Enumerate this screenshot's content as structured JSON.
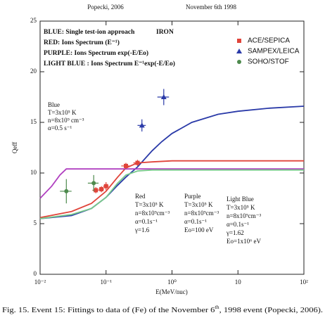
{
  "header": {
    "left": "Popecki, 2006",
    "right": "November 6th 1998"
  },
  "chart_data": {
    "type": "scatter",
    "xlabel": "E(MeV/nuc)",
    "ylabel": "Qeff",
    "xscale": "log",
    "xlim": [
      0.01,
      100
    ],
    "ylim": [
      0,
      25
    ],
    "xticks": [
      {
        "value": 0.01,
        "label": "10⁻²"
      },
      {
        "value": 0.1,
        "label": "10⁻¹"
      },
      {
        "value": 1,
        "label": "10⁰"
      },
      {
        "value": 10,
        "label": "10"
      },
      {
        "value": 100,
        "label": "10²"
      }
    ],
    "yticks": [
      0,
      5,
      10,
      15,
      20,
      25
    ],
    "legend": "upper right",
    "lines": [
      {
        "color": "#2a3aa8",
        "x": [
          0.01,
          0.03,
          0.06,
          0.1,
          0.15,
          0.2,
          0.3,
          0.5,
          0.7,
          1,
          2,
          5,
          10,
          30,
          100
        ],
        "values": [
          5.5,
          5.8,
          6.5,
          7.6,
          8.8,
          9.6,
          10.6,
          12.2,
          13.1,
          13.9,
          15.0,
          15.8,
          16.1,
          16.4,
          16.6
        ]
      },
      {
        "color": "#e0443a",
        "x": [
          0.01,
          0.03,
          0.06,
          0.1,
          0.15,
          0.2,
          0.3,
          0.5,
          1,
          10,
          100
        ],
        "values": [
          5.6,
          6.2,
          7.0,
          8.2,
          9.6,
          10.5,
          11.0,
          11.1,
          11.2,
          11.2,
          11.2
        ]
      },
      {
        "color": "#b040c0",
        "x": [
          0.01,
          0.015,
          0.02,
          0.025,
          0.03,
          1,
          100
        ],
        "values": [
          7.5,
          8.7,
          9.8,
          10.4,
          10.4,
          10.4,
          10.4
        ]
      },
      {
        "color": "#78c98a",
        "x": [
          0.01,
          0.03,
          0.06,
          0.1,
          0.15,
          0.2,
          0.3,
          0.5,
          1,
          10,
          100
        ],
        "values": [
          5.5,
          5.9,
          6.5,
          7.6,
          9.0,
          9.8,
          10.2,
          10.3,
          10.3,
          10.3,
          10.3
        ]
      }
    ],
    "series": [
      {
        "name": "ACE/SEPICA",
        "color": "#e0443a",
        "marker": "square",
        "x": [
          0.07,
          0.085,
          0.1,
          0.2,
          0.3
        ],
        "values": [
          8.3,
          8.4,
          8.7,
          10.7,
          11.0
        ],
        "xerr": [
          0.008,
          0.008,
          0.01,
          0.03,
          0.04
        ],
        "yerr": [
          0.3,
          0.3,
          0.4,
          0.3,
          0.3
        ]
      },
      {
        "name": "SAMPEX/LEICA",
        "color": "#2a3aa8",
        "marker": "triangle",
        "x": [
          0.35,
          0.75
        ],
        "values": [
          14.7,
          17.5
        ],
        "xerr": [
          0.05,
          0.15
        ],
        "yerr": [
          0.6,
          0.8
        ]
      },
      {
        "name": "SOHO/STOF",
        "color": "#4d8a4d",
        "marker": "circle",
        "x": [
          0.025,
          0.065
        ],
        "values": [
          8.2,
          9.0
        ],
        "xerr": [
          0.005,
          0.012
        ],
        "yerr": [
          1.2,
          0.8
        ]
      }
    ],
    "annotations": {
      "key": [
        "BLUE:  Single test-ion approach",
        "RED: Ions Spectrum (E⁻¹)",
        "PURPLE: Ions Spectrum   exp(-E/Eo)",
        "LIGHT BLUE : Ions Spectrum E⁻¹exp(-E/Eo)"
      ],
      "element": "IRON",
      "blue": [
        "Blue",
        "T=3x10⁵ K",
        "n=8x10⁹ cm⁻³",
        "α=0.5 s⁻¹"
      ],
      "red": [
        "Red",
        "T=3x10⁵ K",
        "n=8x10⁹cm⁻³",
        "α=0.1s⁻¹",
        "γ=1.6"
      ],
      "purple": [
        "Purple",
        "T=3x10⁵ K",
        "n=8x10⁹cm⁻³",
        "α=0.1s⁻¹",
        "Eo=100 eV"
      ],
      "lightblue": [
        "Light Blue",
        "T=3x10⁵ K",
        "n=8x10⁹cm⁻³",
        "α=0.1s⁻¹",
        "γ=1.62",
        "Eo=1x10⁶ eV"
      ]
    }
  },
  "caption": {
    "before": "Fig. 15. Event 15: Fittings to data of (Fe) of the November 6",
    "sup": "th",
    "after": ", 1998 event (Popecki, 2006)."
  }
}
